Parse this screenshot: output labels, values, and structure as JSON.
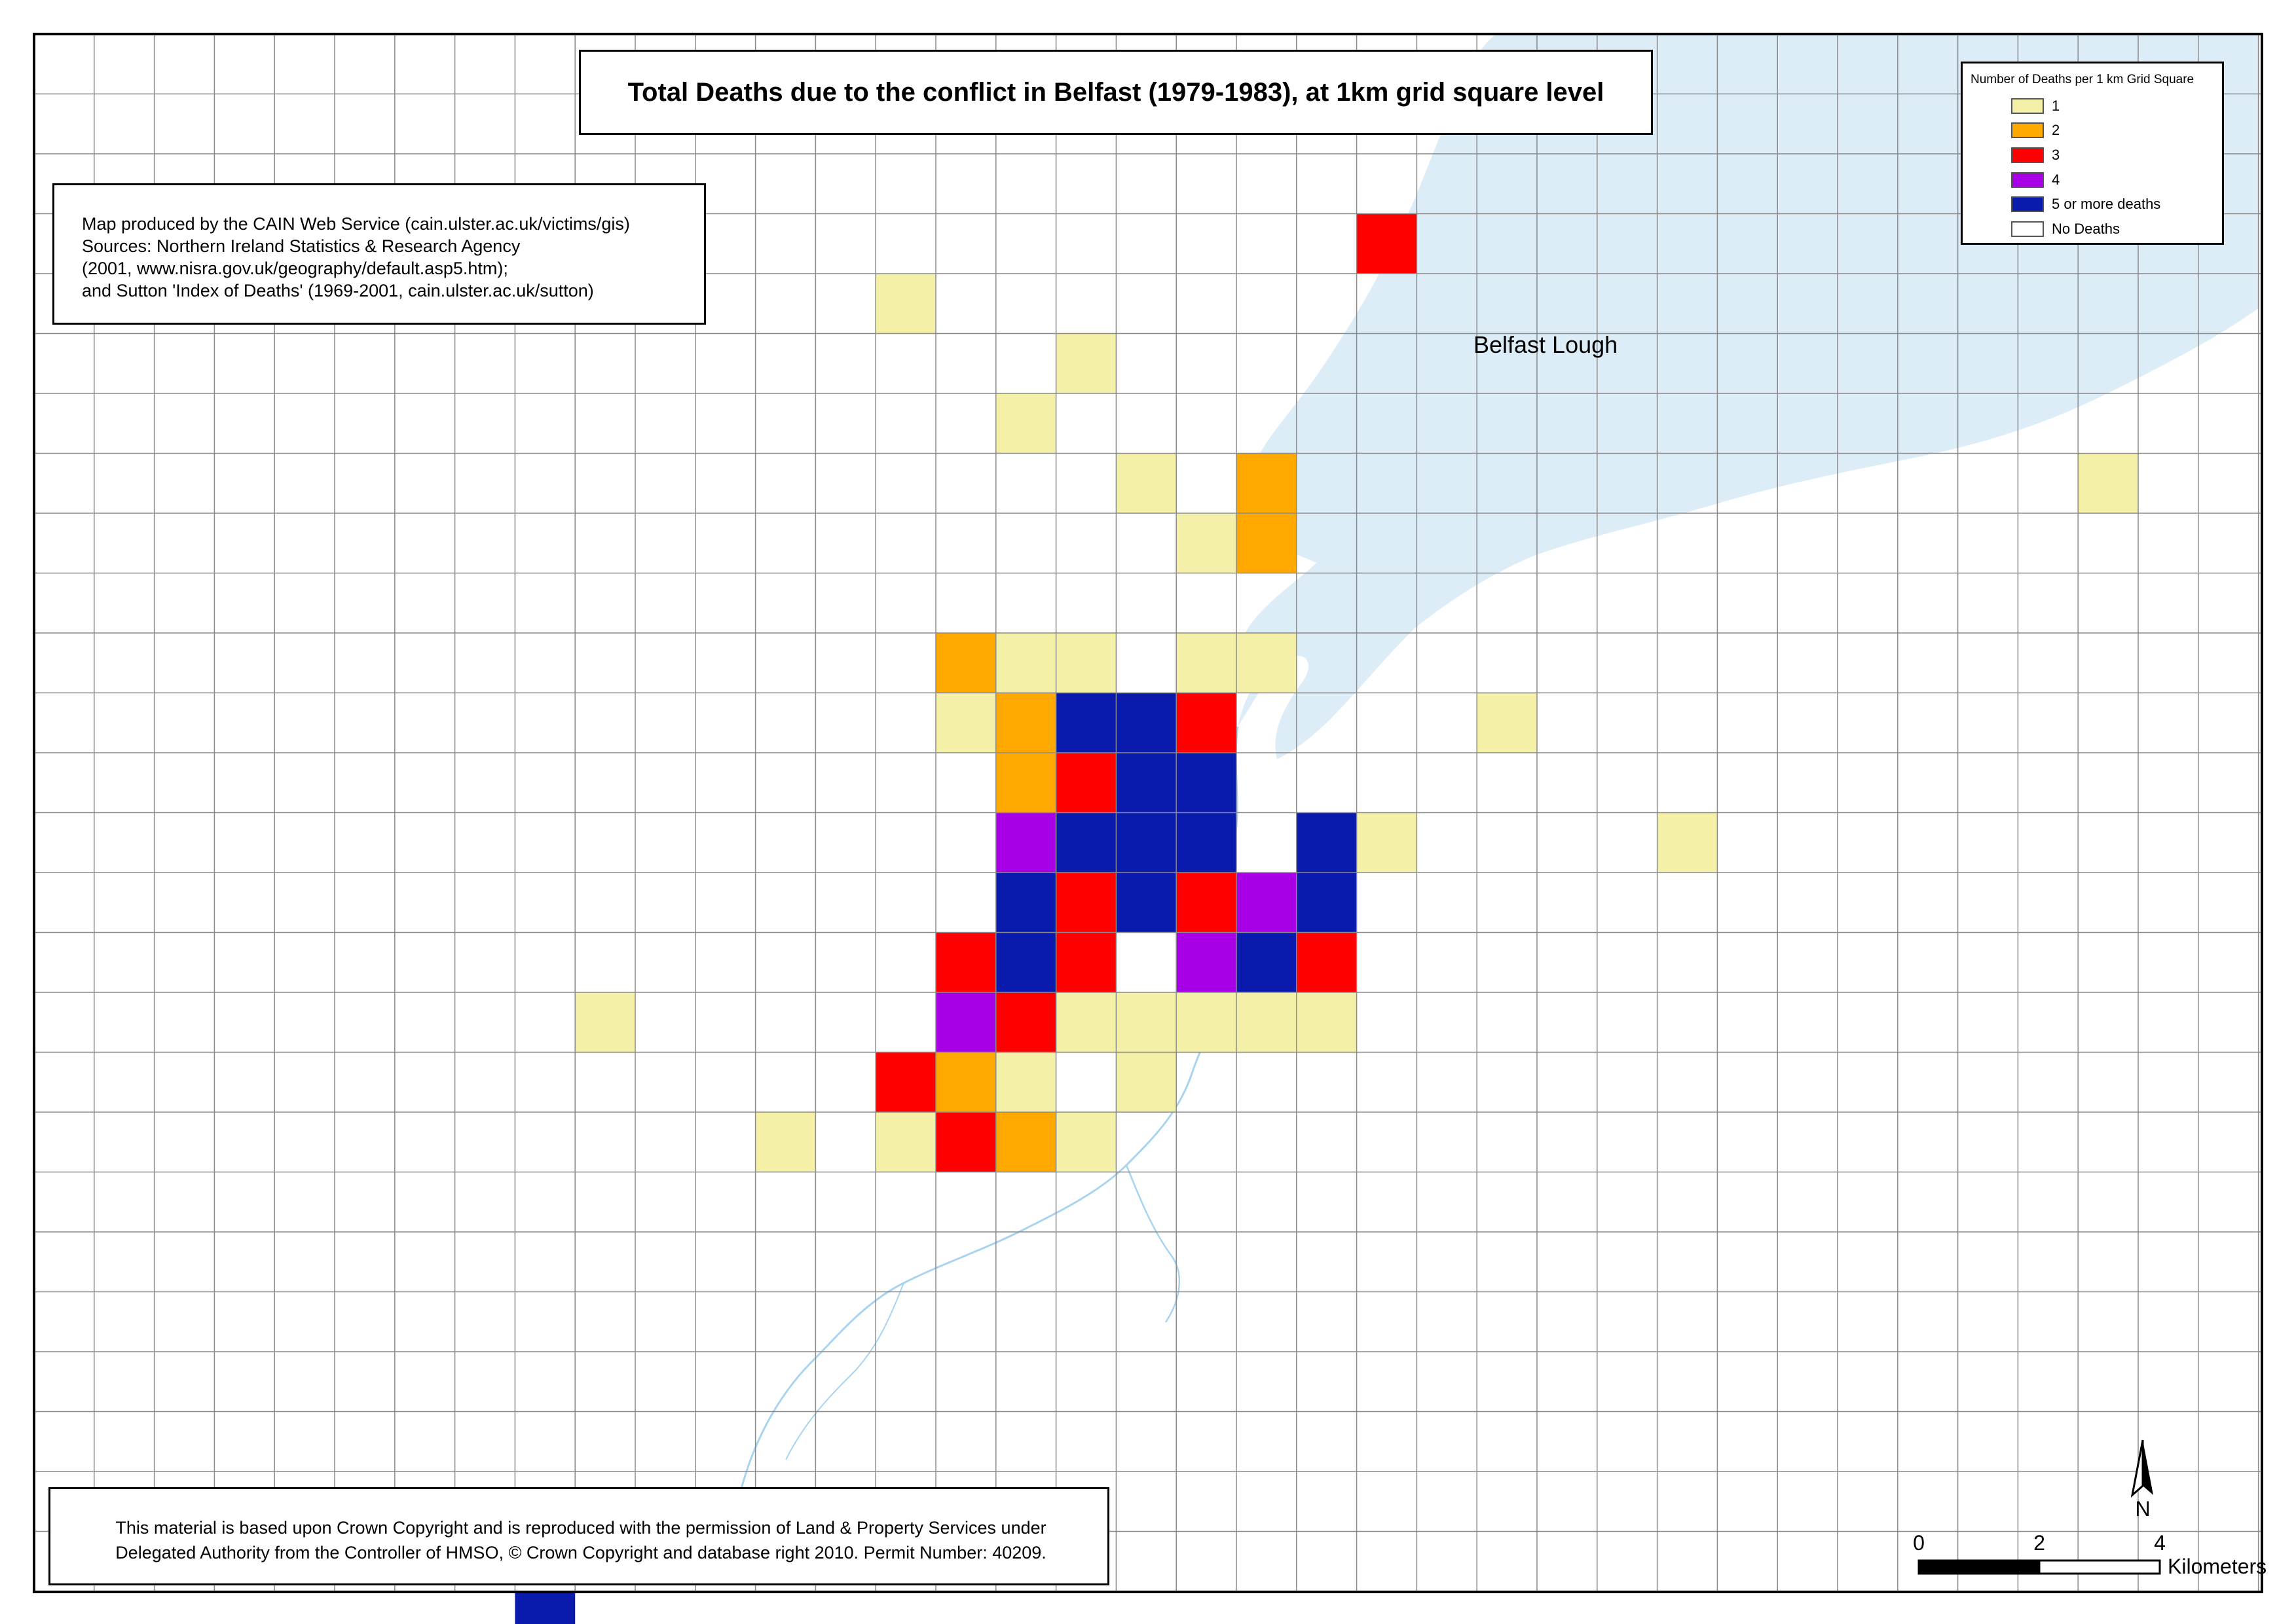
{
  "title": "Total Deaths due to the conflict in Belfast (1979-1983), at 1km grid square level",
  "credits": [
    "Map produced by the CAIN Web Service (cain.ulster.ac.uk/victims/gis)",
    "Sources: Northern Ireland Statistics & Research Agency",
    "(2001, www.nisra.gov.uk/geography/default.asp5.htm);",
    "and Sutton 'Index of Deaths' (1969-2001, cain.ulster.ac.uk/sutton)"
  ],
  "legend": {
    "title": "Number of Deaths per 1 km Grid Square",
    "items": [
      {
        "label": "1",
        "color": "#f5f0a8"
      },
      {
        "label": "2",
        "color": "#ffa800"
      },
      {
        "label": "3",
        "color": "#ff0000"
      },
      {
        "label": "4",
        "color": "#a800e6"
      },
      {
        "label": "5 or more deaths",
        "color": "#0a1aad"
      },
      {
        "label": "No Deaths",
        "color": "#ffffff"
      }
    ]
  },
  "map_labels": {
    "lough": "Belfast Lough"
  },
  "copyright": [
    "This material is based upon Crown Copyright and is reproduced with the permission of Land & Property Services under",
    "Delegated Authority from the Controller of HMSO, © Crown Copyright and database right 2010. Permit Number: 40209."
  ],
  "north_arrow_label": "N",
  "scale_bar": {
    "ticks": [
      "0",
      "2",
      "4"
    ],
    "unit": "Kilometers"
  },
  "colors": {
    "water": "#dcedf8",
    "grid_line": "#8a8a8a",
    "river": "#a8d4f0"
  },
  "grid_cells": [
    {
      "col": 22,
      "row": 3,
      "deaths": 3
    },
    {
      "col": 14,
      "row": 4,
      "deaths": 1
    },
    {
      "col": 17,
      "row": 5,
      "deaths": 1
    },
    {
      "col": 16,
      "row": 6,
      "deaths": 1
    },
    {
      "col": 18,
      "row": 7,
      "deaths": 1
    },
    {
      "col": 20,
      "row": 7,
      "deaths": 2
    },
    {
      "col": 34,
      "row": 7,
      "deaths": 1
    },
    {
      "col": 19,
      "row": 8,
      "deaths": 1
    },
    {
      "col": 20,
      "row": 8,
      "deaths": 2
    },
    {
      "col": 15,
      "row": 10,
      "deaths": 2
    },
    {
      "col": 16,
      "row": 10,
      "deaths": 1
    },
    {
      "col": 17,
      "row": 10,
      "deaths": 1
    },
    {
      "col": 19,
      "row": 10,
      "deaths": 1
    },
    {
      "col": 20,
      "row": 10,
      "deaths": 1
    },
    {
      "col": 15,
      "row": 11,
      "deaths": 1
    },
    {
      "col": 16,
      "row": 11,
      "deaths": 2
    },
    {
      "col": 17,
      "row": 11,
      "deaths": 5
    },
    {
      "col": 18,
      "row": 11,
      "deaths": 5
    },
    {
      "col": 19,
      "row": 11,
      "deaths": 3
    },
    {
      "col": 24,
      "row": 11,
      "deaths": 1
    },
    {
      "col": 16,
      "row": 12,
      "deaths": 2
    },
    {
      "col": 17,
      "row": 12,
      "deaths": 3
    },
    {
      "col": 18,
      "row": 12,
      "deaths": 5
    },
    {
      "col": 19,
      "row": 12,
      "deaths": 5
    },
    {
      "col": 16,
      "row": 13,
      "deaths": 4
    },
    {
      "col": 17,
      "row": 13,
      "deaths": 5
    },
    {
      "col": 18,
      "row": 13,
      "deaths": 5
    },
    {
      "col": 19,
      "row": 13,
      "deaths": 5
    },
    {
      "col": 21,
      "row": 13,
      "deaths": 5
    },
    {
      "col": 22,
      "row": 13,
      "deaths": 1
    },
    {
      "col": 27,
      "row": 13,
      "deaths": 1
    },
    {
      "col": 16,
      "row": 14,
      "deaths": 5
    },
    {
      "col": 17,
      "row": 14,
      "deaths": 3
    },
    {
      "col": 18,
      "row": 14,
      "deaths": 5
    },
    {
      "col": 19,
      "row": 14,
      "deaths": 3
    },
    {
      "col": 20,
      "row": 14,
      "deaths": 4
    },
    {
      "col": 21,
      "row": 14,
      "deaths": 5
    },
    {
      "col": 15,
      "row": 15,
      "deaths": 3
    },
    {
      "col": 16,
      "row": 15,
      "deaths": 5
    },
    {
      "col": 17,
      "row": 15,
      "deaths": 3
    },
    {
      "col": 19,
      "row": 15,
      "deaths": 4
    },
    {
      "col": 20,
      "row": 15,
      "deaths": 5
    },
    {
      "col": 21,
      "row": 15,
      "deaths": 3
    },
    {
      "col": 9,
      "row": 16,
      "deaths": 1
    },
    {
      "col": 15,
      "row": 16,
      "deaths": 4
    },
    {
      "col": 16,
      "row": 16,
      "deaths": 3
    },
    {
      "col": 17,
      "row": 16,
      "deaths": 1
    },
    {
      "col": 18,
      "row": 16,
      "deaths": 1
    },
    {
      "col": 19,
      "row": 16,
      "deaths": 1
    },
    {
      "col": 20,
      "row": 16,
      "deaths": 1
    },
    {
      "col": 21,
      "row": 16,
      "deaths": 1
    },
    {
      "col": 14,
      "row": 17,
      "deaths": 3
    },
    {
      "col": 15,
      "row": 17,
      "deaths": 2
    },
    {
      "col": 16,
      "row": 17,
      "deaths": 1
    },
    {
      "col": 18,
      "row": 17,
      "deaths": 1
    },
    {
      "col": 12,
      "row": 18,
      "deaths": 1
    },
    {
      "col": 14,
      "row": 18,
      "deaths": 1
    },
    {
      "col": 15,
      "row": 18,
      "deaths": 3
    },
    {
      "col": 16,
      "row": 18,
      "deaths": 2
    },
    {
      "col": 17,
      "row": 18,
      "deaths": 1
    },
    {
      "col": 8,
      "row": 26,
      "deaths": 5
    }
  ]
}
